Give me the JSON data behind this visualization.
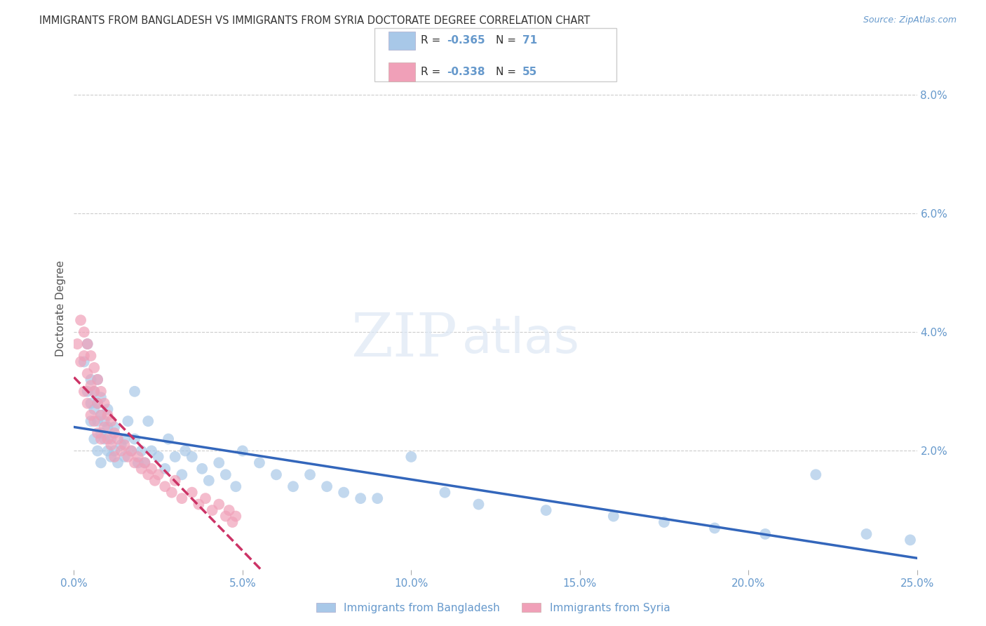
{
  "title": "IMMIGRANTS FROM BANGLADESH VS IMMIGRANTS FROM SYRIA DOCTORATE DEGREE CORRELATION CHART",
  "source": "Source: ZipAtlas.com",
  "ylabel_left": "Doctorate Degree",
  "ylabel_right_ticks": [
    0.0,
    0.02,
    0.04,
    0.06,
    0.08
  ],
  "ylabel_right_labels": [
    "",
    "2.0%",
    "4.0%",
    "6.0%",
    "8.0%"
  ],
  "xlim": [
    0.0,
    0.25
  ],
  "ylim": [
    0.0,
    0.088
  ],
  "xticks": [
    0.0,
    0.05,
    0.1,
    0.15,
    0.2,
    0.25
  ],
  "xtick_labels": [
    "0.0%",
    "5.0%",
    "10.0%",
    "15.0%",
    "20.0%",
    "25.0%"
  ],
  "series1_name": "Immigrants from Bangladesh",
  "series1_color": "#a8c8e8",
  "series1_line_color": "#3366bb",
  "series1_R": -0.365,
  "series1_N": 71,
  "series2_name": "Immigrants from Syria",
  "series2_color": "#f0a0b8",
  "series2_line_color": "#cc3366",
  "series2_R": -0.338,
  "series2_N": 55,
  "watermark_zip": "ZIP",
  "watermark_atlas": "atlas",
  "background_color": "#ffffff",
  "grid_color": "#cccccc",
  "title_color": "#333333",
  "axis_color": "#6699cc",
  "series1_x": [
    0.003,
    0.004,
    0.004,
    0.005,
    0.005,
    0.005,
    0.006,
    0.006,
    0.006,
    0.007,
    0.007,
    0.007,
    0.007,
    0.008,
    0.008,
    0.008,
    0.008,
    0.009,
    0.009,
    0.01,
    0.01,
    0.01,
    0.011,
    0.011,
    0.012,
    0.012,
    0.013,
    0.014,
    0.015,
    0.015,
    0.016,
    0.017,
    0.018,
    0.018,
    0.019,
    0.02,
    0.021,
    0.022,
    0.023,
    0.025,
    0.027,
    0.028,
    0.03,
    0.032,
    0.033,
    0.035,
    0.038,
    0.04,
    0.043,
    0.045,
    0.048,
    0.05,
    0.055,
    0.06,
    0.065,
    0.07,
    0.075,
    0.08,
    0.085,
    0.09,
    0.1,
    0.11,
    0.12,
    0.14,
    0.16,
    0.175,
    0.19,
    0.205,
    0.22,
    0.235,
    0.248
  ],
  "series1_y": [
    0.035,
    0.03,
    0.038,
    0.028,
    0.032,
    0.025,
    0.027,
    0.03,
    0.022,
    0.025,
    0.028,
    0.032,
    0.02,
    0.023,
    0.026,
    0.029,
    0.018,
    0.022,
    0.025,
    0.02,
    0.024,
    0.027,
    0.022,
    0.019,
    0.02,
    0.024,
    0.018,
    0.021,
    0.019,
    0.022,
    0.025,
    0.02,
    0.03,
    0.022,
    0.018,
    0.02,
    0.018,
    0.025,
    0.02,
    0.019,
    0.017,
    0.022,
    0.019,
    0.016,
    0.02,
    0.019,
    0.017,
    0.015,
    0.018,
    0.016,
    0.014,
    0.02,
    0.018,
    0.016,
    0.014,
    0.016,
    0.014,
    0.013,
    0.012,
    0.012,
    0.019,
    0.013,
    0.011,
    0.01,
    0.009,
    0.008,
    0.007,
    0.006,
    0.016,
    0.006,
    0.005
  ],
  "series2_x": [
    0.001,
    0.002,
    0.002,
    0.003,
    0.003,
    0.003,
    0.004,
    0.004,
    0.004,
    0.005,
    0.005,
    0.005,
    0.006,
    0.006,
    0.006,
    0.007,
    0.007,
    0.007,
    0.008,
    0.008,
    0.008,
    0.009,
    0.009,
    0.01,
    0.01,
    0.011,
    0.011,
    0.012,
    0.012,
    0.013,
    0.014,
    0.015,
    0.016,
    0.017,
    0.018,
    0.019,
    0.02,
    0.021,
    0.022,
    0.023,
    0.024,
    0.025,
    0.027,
    0.029,
    0.03,
    0.032,
    0.035,
    0.037,
    0.039,
    0.041,
    0.043,
    0.045,
    0.046,
    0.047,
    0.048
  ],
  "series2_y": [
    0.038,
    0.042,
    0.035,
    0.04,
    0.036,
    0.03,
    0.038,
    0.033,
    0.028,
    0.036,
    0.031,
    0.026,
    0.034,
    0.03,
    0.025,
    0.032,
    0.028,
    0.023,
    0.03,
    0.026,
    0.022,
    0.028,
    0.024,
    0.026,
    0.022,
    0.025,
    0.021,
    0.023,
    0.019,
    0.022,
    0.02,
    0.021,
    0.019,
    0.02,
    0.018,
    0.019,
    0.017,
    0.018,
    0.016,
    0.017,
    0.015,
    0.016,
    0.014,
    0.013,
    0.015,
    0.012,
    0.013,
    0.011,
    0.012,
    0.01,
    0.011,
    0.009,
    0.01,
    0.008,
    0.009
  ],
  "series2_trendline_xlim": [
    0.0,
    0.06
  ],
  "legend_R_color": "#cc3366",
  "legend_N_color": "#3366bb"
}
